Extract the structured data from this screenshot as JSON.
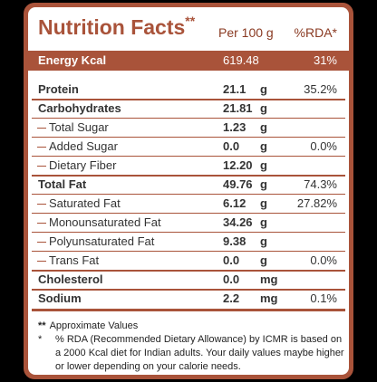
{
  "header": {
    "title": "Nutrition Facts",
    "title_mark": "**",
    "per_label": "Per 100 g",
    "rda_label": "%RDA*"
  },
  "energy": {
    "label": "Energy Kcal",
    "value": "619.48",
    "rda": "31%"
  },
  "rows": [
    {
      "label": "Protein",
      "value": "21.1",
      "unit": "g",
      "rda": "35.2%"
    },
    {
      "label": "Carbohydrates",
      "value": "21.81",
      "unit": "g",
      "rda": ""
    },
    {
      "label": "Total Sugar",
      "value": "1.23",
      "unit": "g",
      "rda": ""
    },
    {
      "label": "Added Sugar",
      "value": "0.0",
      "unit": "g",
      "rda": "0.0%"
    },
    {
      "label": "Dietary Fiber",
      "value": "12.20",
      "unit": "g",
      "rda": ""
    },
    {
      "label": "Total Fat",
      "value": "49.76",
      "unit": "g",
      "rda": "74.3%"
    },
    {
      "label": "Saturated Fat",
      "value": "6.12",
      "unit": "g",
      "rda": "27.82%"
    },
    {
      "label": "Monounsaturated Fat",
      "value": "34.26",
      "unit": "g",
      "rda": ""
    },
    {
      "label": "Polyunsaturated Fat",
      "value": "9.38",
      "unit": "g",
      "rda": ""
    },
    {
      "label": "Trans Fat",
      "value": "0.0",
      "unit": "g",
      "rda": "0.0%"
    },
    {
      "label": "Cholesterol",
      "value": "0.0",
      "unit": "mg",
      "rda": ""
    },
    {
      "label": "Sodium",
      "value": "2.2",
      "unit": "mg",
      "rda": "0.1%"
    }
  ],
  "footnotes": {
    "note1_mark": "**",
    "note1_text": "Approximate Values",
    "note2_mark": "*",
    "note2_text": "% RDA (Recommended Dietary Allowance) by ICMR is based on a 2000 Kcal diet for Indian adults. Your daily values maybe higher or lower depending on your calorie needs."
  },
  "colors": {
    "brand": "#a9533a",
    "background": "#000000",
    "panel": "#ffffff"
  }
}
